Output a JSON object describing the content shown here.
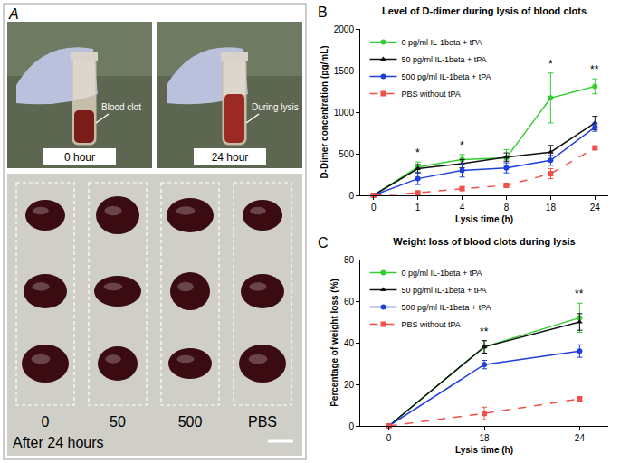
{
  "panel_a": {
    "label": "A",
    "top_left": {
      "caption": "0 hour",
      "arrow_label": "Blood clot"
    },
    "top_right": {
      "caption": "24 hour",
      "arrow_label": "During lysis"
    },
    "bottom": {
      "caption": "After 24 hours",
      "columns": [
        "0",
        "50",
        "500",
        "PBS"
      ]
    }
  },
  "chart_data": [
    {
      "panel": "B",
      "type": "line",
      "title": "Level of D-dimer during lysis of blood clots",
      "x_label": "Lysis time (h)",
      "y_label": "D-Dimer concentration (pg/mL)",
      "categories": [
        "0",
        "1",
        "4",
        "8",
        "18",
        "24"
      ],
      "ylim": [
        0,
        2000
      ],
      "yticks": [
        0,
        500,
        1000,
        1500,
        2000
      ],
      "grid": false,
      "legend": "upper left",
      "series": [
        {
          "name": "0 pg/ml IL-1beta + tPA",
          "color": "#33cc33",
          "marker": "circle",
          "line_style": "solid",
          "values": [
            0,
            340,
            430,
            450,
            1170,
            1310
          ],
          "errors": [
            0,
            60,
            60,
            100,
            300,
            90
          ]
        },
        {
          "name": "50 pg/ml IL-1beta + tPA",
          "color": "#111111",
          "marker": "triangle-up",
          "line_style": "solid",
          "values": [
            0,
            320,
            380,
            460,
            520,
            870
          ],
          "errors": [
            0,
            50,
            50,
            50,
            80,
            80
          ]
        },
        {
          "name": "500 pg/ml IL-1beta + tPA",
          "color": "#1f3fdd",
          "marker": "circle",
          "line_style": "solid",
          "values": [
            0,
            200,
            300,
            330,
            420,
            820
          ],
          "errors": [
            0,
            70,
            80,
            60,
            60,
            50
          ]
        },
        {
          "name": "PBS without tPA",
          "color": "#f0504a",
          "marker": "square",
          "line_style": "dash",
          "values": [
            0,
            30,
            80,
            120,
            260,
            570
          ],
          "errors": [
            0,
            10,
            20,
            20,
            60,
            20
          ]
        }
      ],
      "annotations": [
        {
          "x": "1",
          "text": "*"
        },
        {
          "x": "4",
          "text": "*"
        },
        {
          "x": "18",
          "text": "*"
        },
        {
          "x": "24",
          "text": "**"
        }
      ]
    },
    {
      "panel": "C",
      "type": "line",
      "title": "Weight loss of blood clots during lysis",
      "x_label": "Lysis time (h)",
      "y_label": "Percentage of weight loss (%)",
      "categories": [
        "0",
        "18",
        "24"
      ],
      "ylim": [
        0,
        80
      ],
      "yticks": [
        0,
        20,
        40,
        60,
        80
      ],
      "grid": false,
      "legend": "upper left",
      "series": [
        {
          "name": "0 pg/ml IL-1beta + tPA",
          "color": "#33cc33",
          "marker": "circle",
          "line_style": "solid",
          "values": [
            0,
            38,
            52
          ],
          "errors": [
            0,
            3,
            7
          ]
        },
        {
          "name": "50 pg/ml IL-1beta + tPA",
          "color": "#111111",
          "marker": "triangle-up",
          "line_style": "solid",
          "values": [
            0,
            38,
            50
          ],
          "errors": [
            0,
            3,
            4
          ]
        },
        {
          "name": "500 pg/ml IL-1beta + tPA",
          "color": "#1f3fdd",
          "marker": "circle",
          "line_style": "solid",
          "values": [
            0,
            29.5,
            36
          ],
          "errors": [
            0,
            2,
            3
          ]
        },
        {
          "name": "PBS without tPA",
          "color": "#f0504a",
          "marker": "square",
          "line_style": "dash",
          "values": [
            0,
            6,
            13
          ],
          "errors": [
            0,
            3,
            1
          ]
        }
      ],
      "annotations": [
        {
          "x": "18",
          "text": "**"
        },
        {
          "x": "24",
          "text": "**"
        }
      ]
    }
  ]
}
